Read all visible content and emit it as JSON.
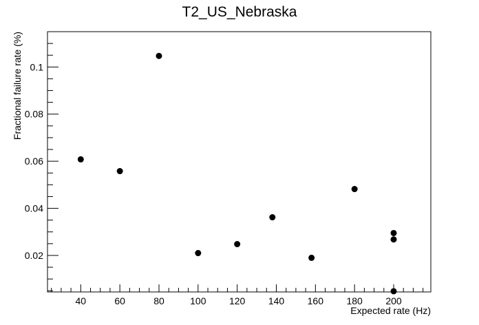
{
  "chart_data": {
    "type": "scatter",
    "title": "T2_US_Nebraska",
    "xlabel": "Expected rate (Hz)",
    "ylabel": "Fractional failure rate (%)",
    "xlim": [
      23,
      219
    ],
    "ylim": [
      0.0045,
      0.115
    ],
    "x_ticks": [
      40,
      60,
      80,
      100,
      120,
      140,
      160,
      180,
      200
    ],
    "y_ticks": [
      0.02,
      0.04,
      0.06,
      0.08,
      0.1
    ],
    "grid": false,
    "points": [
      {
        "x": 40,
        "y": 0.0608
      },
      {
        "x": 60,
        "y": 0.0558
      },
      {
        "x": 80,
        "y": 0.1047
      },
      {
        "x": 100,
        "y": 0.021
      },
      {
        "x": 120,
        "y": 0.0248
      },
      {
        "x": 138,
        "y": 0.0362
      },
      {
        "x": 158,
        "y": 0.019
      },
      {
        "x": 180,
        "y": 0.0482
      },
      {
        "x": 200,
        "y": 0.0295
      },
      {
        "x": 200,
        "y": 0.0268
      },
      {
        "x": 200,
        "y": 0.0048
      }
    ]
  }
}
